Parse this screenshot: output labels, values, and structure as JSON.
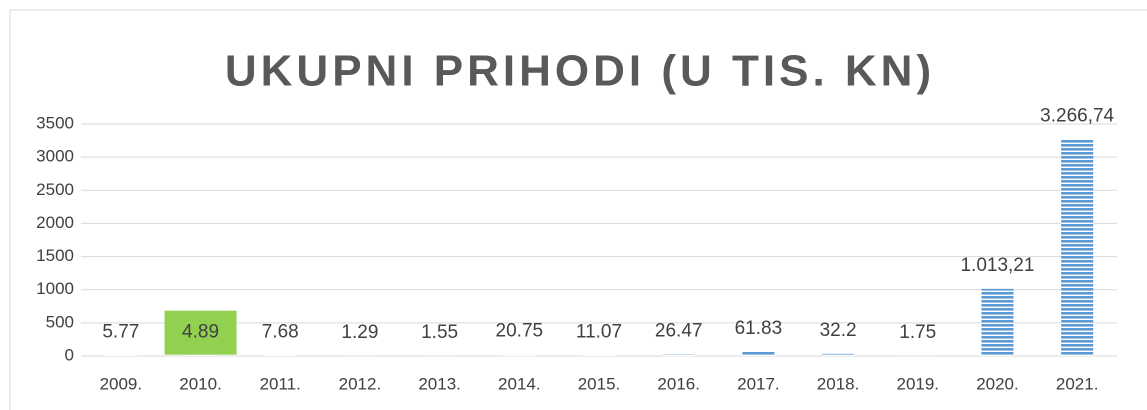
{
  "chart_data": {
    "type": "bar",
    "title": "UKUPNI PRIHODI (U TIS. KN)",
    "categories": [
      "2009.",
      "2010.",
      "2011.",
      "2012.",
      "2013.",
      "2014.",
      "2015.",
      "2016.",
      "2017.",
      "2018.",
      "2019.",
      "2020.",
      "2021."
    ],
    "values": [
      5.77,
      4.89,
      7.68,
      1.29,
      1.55,
      20.75,
      11.07,
      26.47,
      61.83,
      32.2,
      1.75,
      1013.21,
      3266.74
    ],
    "value_labels": [
      "5.77",
      "4.89",
      "7.68",
      "1.29",
      "1.55",
      "20.75",
      "11.07",
      "26.47",
      "61.83",
      "32.2",
      "1.75",
      "1.013,21",
      "3.266,74"
    ],
    "color": "#5b9bd5",
    "label_highlight": {
      "index": 1,
      "color": "#92d050"
    },
    "ylim": [
      0,
      3500
    ],
    "yticks": [
      0,
      500,
      1000,
      1500,
      2000,
      2500,
      3000,
      3500
    ],
    "grid": true
  }
}
